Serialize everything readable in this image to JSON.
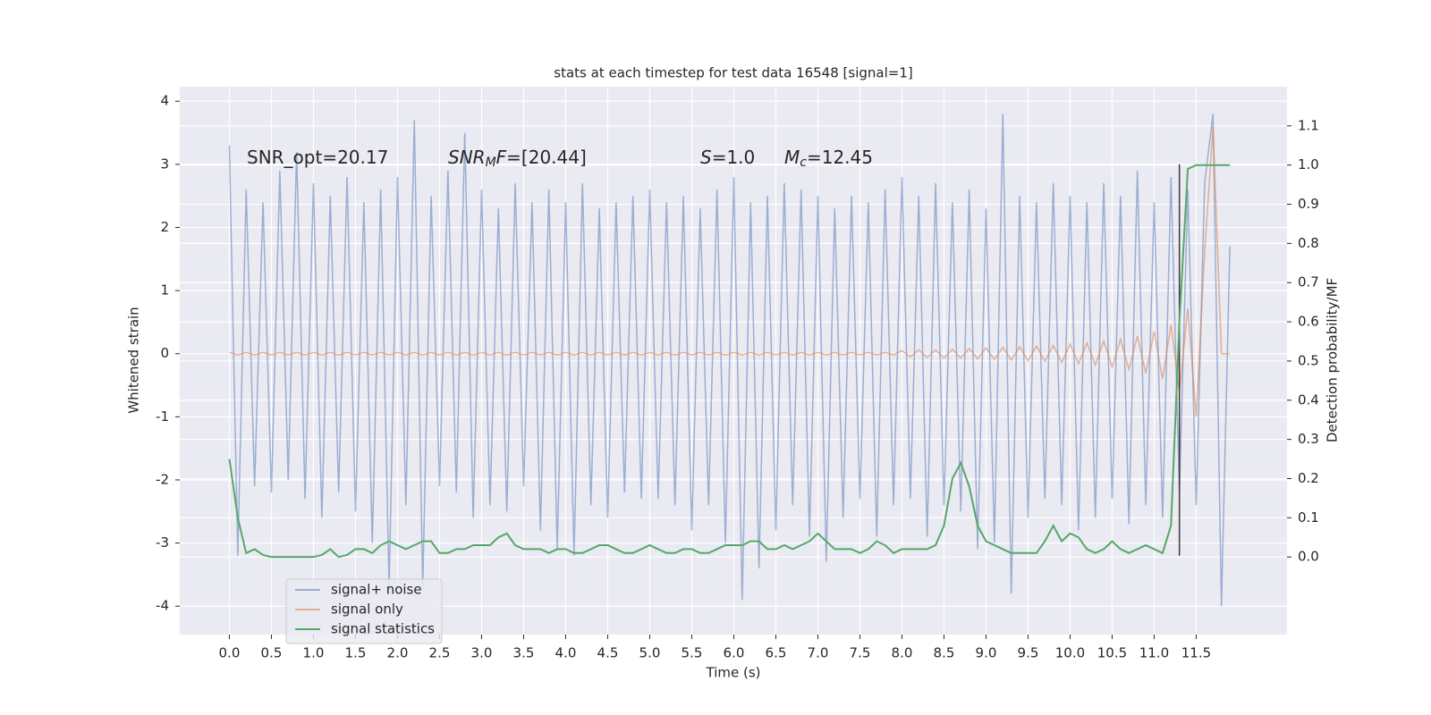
{
  "chart_data": {
    "type": "line",
    "title": "stats at each timestep for test data 16548 [signal=1]",
    "xlabel": "Time (s)",
    "ylabel": "Whitened strain",
    "y2label": "Detection probability/MF",
    "background": "#eaeaf2",
    "grid": true,
    "legend": "lower left",
    "xlim": [
      -0.59,
      12.58
    ],
    "ylim": [
      -4.45,
      4.23
    ],
    "y2lim": [
      -0.198,
      1.2
    ],
    "xticks": [
      {
        "value": 0,
        "label": "0.0"
      },
      0.5,
      {
        "value": 1,
        "label": "1.0"
      },
      1.5,
      {
        "value": 2,
        "label": "2.0"
      },
      2.5,
      {
        "value": 3,
        "label": "3.0"
      },
      3.5,
      {
        "value": 4,
        "label": "4.0"
      },
      4.5,
      {
        "value": 5,
        "label": "5.0"
      },
      5.5,
      {
        "value": 6,
        "label": "6.0"
      },
      6.5,
      {
        "value": 7,
        "label": "7.0"
      },
      7.5,
      {
        "value": 8,
        "label": "8.0"
      },
      8.5,
      {
        "value": 9,
        "label": "9.0"
      },
      9.5,
      {
        "value": 10,
        "label": "10.0"
      },
      10.5,
      {
        "value": 11,
        "label": "11.0"
      },
      11.5
    ],
    "yticks": [
      -4,
      -3,
      -2,
      -1,
      0,
      1,
      2,
      3,
      4
    ],
    "y2ticks": [
      {
        "value": 0,
        "label": "0.0"
      },
      0.1,
      0.2,
      0.3,
      0.4,
      0.5,
      0.6,
      0.7,
      0.8,
      0.9,
      {
        "value": 1,
        "label": "1.0"
      },
      1.1
    ],
    "annotations": [
      {
        "parts": [
          "SNR_opt=20.17"
        ]
      },
      {
        "parts": [
          "SNR",
          "M",
          "F",
          "=[20.44]"
        ]
      },
      {
        "parts": [
          "S",
          "=1.0"
        ]
      },
      {
        "parts": [
          "M",
          "c",
          "=12.45"
        ]
      }
    ],
    "vertical_line": {
      "x": 11.3,
      "ymin": -3.2,
      "ymax": 3.0,
      "color": "#3a3a3a"
    },
    "x": [
      0.0,
      0.1,
      0.2,
      0.3,
      0.4,
      0.5,
      0.6,
      0.7,
      0.8,
      0.9,
      1.0,
      1.1,
      1.2,
      1.3,
      1.4,
      1.5,
      1.6,
      1.7,
      1.8,
      1.9,
      2.0,
      2.1,
      2.2,
      2.3,
      2.4,
      2.5,
      2.6,
      2.7,
      2.8,
      2.9,
      3.0,
      3.1,
      3.2,
      3.3,
      3.4,
      3.5,
      3.6,
      3.7,
      3.8,
      3.9,
      4.0,
      4.1,
      4.2,
      4.3,
      4.4,
      4.5,
      4.6,
      4.7,
      4.8,
      4.9,
      5.0,
      5.1,
      5.2,
      5.3,
      5.4,
      5.5,
      5.6,
      5.7,
      5.8,
      5.9,
      6.0,
      6.1,
      6.2,
      6.3,
      6.4,
      6.5,
      6.6,
      6.7,
      6.8,
      6.9,
      7.0,
      7.1,
      7.2,
      7.3,
      7.4,
      7.5,
      7.6,
      7.7,
      7.8,
      7.9,
      8.0,
      8.1,
      8.2,
      8.3,
      8.4,
      8.5,
      8.6,
      8.7,
      8.8,
      8.9,
      9.0,
      9.1,
      9.2,
      9.3,
      9.4,
      9.5,
      9.6,
      9.7,
      9.8,
      9.9,
      10.0,
      10.1,
      10.2,
      10.3,
      10.4,
      10.5,
      10.6,
      10.7,
      10.8,
      10.9,
      11.0,
      11.1,
      11.2,
      11.3,
      11.4,
      11.5,
      11.6,
      11.7,
      11.8,
      11.9
    ],
    "series": [
      {
        "name": "signal+ noise",
        "color": "#4c72b0",
        "opacity": 0.5,
        "values": [
          3.3,
          -3.2,
          2.6,
          -2.1,
          2.4,
          -2.2,
          2.9,
          -2.0,
          3.2,
          -2.3,
          2.7,
          -2.6,
          2.5,
          -2.2,
          2.8,
          -2.5,
          2.4,
          -3.0,
          2.6,
          -3.7,
          2.8,
          -2.4,
          3.7,
          -3.7,
          2.5,
          -2.1,
          2.9,
          -2.2,
          3.5,
          -2.6,
          2.6,
          -2.4,
          2.3,
          -2.5,
          2.7,
          -2.1,
          2.4,
          -2.8,
          2.6,
          -3.1,
          2.4,
          -3.2,
          2.7,
          -2.4,
          2.3,
          -2.6,
          2.4,
          -2.2,
          2.5,
          -2.3,
          2.6,
          -2.3,
          2.4,
          -2.4,
          2.5,
          -2.8,
          2.3,
          -2.4,
          2.6,
          -3.0,
          2.8,
          -3.9,
          2.4,
          -3.4,
          2.5,
          -2.8,
          2.7,
          -2.4,
          2.6,
          -2.9,
          2.5,
          -3.3,
          2.3,
          -2.6,
          2.5,
          -2.3,
          2.4,
          -2.9,
          2.6,
          -2.4,
          2.8,
          -2.3,
          2.5,
          -2.9,
          2.7,
          -2.4,
          2.4,
          -2.5,
          2.6,
          -3.1,
          2.3,
          -3.0,
          3.8,
          -3.8,
          2.5,
          -2.6,
          2.4,
          -2.3,
          2.7,
          -2.4,
          2.5,
          -2.8,
          2.4,
          -2.6,
          2.7,
          -2.3,
          2.5,
          -2.7,
          2.9,
          -2.4,
          2.4,
          -2.6,
          2.8,
          -2.2,
          2.6,
          -2.4,
          2.7,
          3.8,
          -4.0,
          1.7
        ]
      },
      {
        "name": "signal only",
        "color": "#dd8452",
        "opacity": 0.6,
        "values": [
          0.02,
          -0.02,
          0.02,
          -0.02,
          0.02,
          -0.02,
          0.02,
          -0.02,
          0.02,
          -0.02,
          0.02,
          -0.02,
          0.02,
          -0.02,
          0.02,
          -0.02,
          0.02,
          -0.02,
          0.02,
          -0.02,
          0.02,
          -0.02,
          0.02,
          -0.02,
          0.02,
          -0.02,
          0.02,
          -0.02,
          0.02,
          -0.02,
          0.02,
          -0.02,
          0.02,
          -0.02,
          0.02,
          -0.02,
          0.02,
          -0.02,
          0.02,
          -0.02,
          0.02,
          -0.02,
          0.02,
          -0.02,
          0.02,
          -0.02,
          0.02,
          -0.02,
          0.02,
          -0.02,
          0.02,
          -0.02,
          0.02,
          -0.02,
          0.02,
          -0.02,
          0.02,
          -0.02,
          0.02,
          -0.02,
          0.02,
          -0.02,
          0.02,
          -0.02,
          0.02,
          -0.02,
          0.02,
          -0.02,
          0.02,
          -0.02,
          0.02,
          -0.02,
          0.02,
          -0.02,
          0.02,
          -0.02,
          0.02,
          -0.02,
          0.02,
          -0.02,
          0.05,
          -0.05,
          0.06,
          -0.06,
          0.06,
          -0.07,
          0.07,
          -0.07,
          0.08,
          -0.08,
          0.09,
          -0.09,
          0.1,
          -0.1,
          0.11,
          -0.11,
          0.12,
          -0.12,
          0.13,
          -0.14,
          0.15,
          -0.16,
          0.17,
          -0.18,
          0.2,
          -0.21,
          0.23,
          -0.25,
          0.28,
          -0.31,
          0.35,
          -0.4,
          0.46,
          -0.6,
          0.72,
          -1.0,
          1.6,
          3.6,
          0.0,
          0.0
        ]
      },
      {
        "name": "signal statistics",
        "color": "#55a868",
        "opacity": 1,
        "axis": "y2",
        "values": [
          0.25,
          0.1,
          0.01,
          0.02,
          0.005,
          0.0,
          0.0,
          0.0,
          0.0,
          0.0,
          0.0,
          0.005,
          0.02,
          0.0,
          0.005,
          0.02,
          0.02,
          0.01,
          0.03,
          0.04,
          0.03,
          0.02,
          0.03,
          0.04,
          0.04,
          0.01,
          0.01,
          0.02,
          0.02,
          0.03,
          0.03,
          0.03,
          0.05,
          0.06,
          0.03,
          0.02,
          0.02,
          0.02,
          0.01,
          0.02,
          0.02,
          0.01,
          0.01,
          0.02,
          0.03,
          0.03,
          0.02,
          0.01,
          0.01,
          0.02,
          0.03,
          0.02,
          0.01,
          0.01,
          0.02,
          0.02,
          0.01,
          0.01,
          0.02,
          0.03,
          0.03,
          0.03,
          0.04,
          0.04,
          0.02,
          0.02,
          0.03,
          0.02,
          0.03,
          0.04,
          0.06,
          0.04,
          0.02,
          0.02,
          0.02,
          0.01,
          0.02,
          0.04,
          0.03,
          0.01,
          0.02,
          0.02,
          0.02,
          0.02,
          0.03,
          0.08,
          0.2,
          0.24,
          0.18,
          0.08,
          0.04,
          0.03,
          0.02,
          0.01,
          0.01,
          0.01,
          0.01,
          0.04,
          0.08,
          0.04,
          0.06,
          0.05,
          0.02,
          0.01,
          0.02,
          0.04,
          0.02,
          0.01,
          0.02,
          0.03,
          0.02,
          0.01,
          0.08,
          0.6,
          0.99,
          1.0,
          1.0,
          1.0,
          1.0,
          1.0
        ]
      }
    ]
  }
}
